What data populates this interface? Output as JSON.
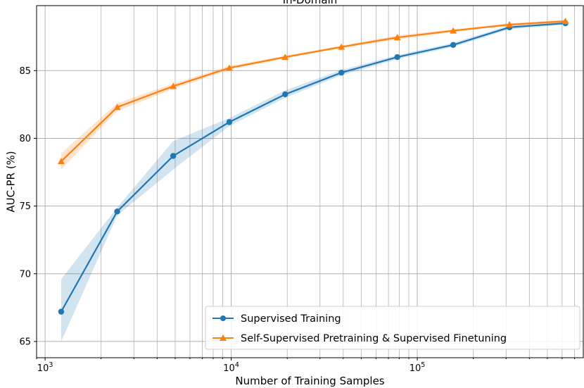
{
  "chart_data": {
    "type": "line",
    "title": "In-Domain",
    "xlabel": "Number of Training Samples",
    "ylabel": "AUC-PR (%)",
    "xscale": "log",
    "xlim": [
      900,
      780000
    ],
    "ylim": [
      63.8,
      89.8
    ],
    "xticks": [
      {
        "value": 1000,
        "base": "10",
        "exp": "3"
      },
      {
        "value": 10000,
        "base": "10",
        "exp": "4"
      },
      {
        "value": 100000,
        "base": "10",
        "exp": "5"
      }
    ],
    "yticks": [
      65,
      70,
      75,
      80,
      85
    ],
    "grid": "major and minor",
    "legend_position": "lower-right",
    "series": [
      {
        "name": "Supervised Training",
        "color": "#1f77b4",
        "marker": "circle",
        "x": [
          1220,
          2440,
          4880,
          9770,
          19500,
          39100,
          78100,
          156000,
          313000,
          625000
        ],
        "y": [
          67.2,
          74.6,
          78.7,
          81.2,
          83.25,
          84.85,
          86.0,
          86.9,
          88.2,
          88.5
        ],
        "band_lower": [
          65.0,
          74.3,
          77.7,
          80.9,
          83.0,
          84.65,
          85.85,
          86.75,
          88.05,
          88.4
        ],
        "band_upper": [
          69.6,
          74.9,
          79.8,
          81.5,
          83.55,
          85.05,
          86.15,
          87.05,
          88.35,
          88.65
        ]
      },
      {
        "name": "Self-Supervised Pretraining & Supervised Finetuning",
        "color": "#ff7f0e",
        "marker": "triangle",
        "x": [
          1220,
          2440,
          4880,
          9770,
          19500,
          39100,
          78100,
          156000,
          313000,
          625000
        ],
        "y": [
          78.3,
          82.3,
          83.85,
          85.2,
          86.0,
          86.75,
          87.45,
          87.95,
          88.4,
          88.65
        ],
        "band_lower": [
          77.7,
          82.0,
          83.65,
          85.05,
          85.9,
          86.65,
          87.3,
          87.85,
          88.3,
          88.55
        ],
        "band_upper": [
          78.9,
          82.6,
          84.05,
          85.35,
          86.1,
          86.85,
          87.6,
          88.05,
          88.5,
          88.75
        ]
      }
    ]
  }
}
